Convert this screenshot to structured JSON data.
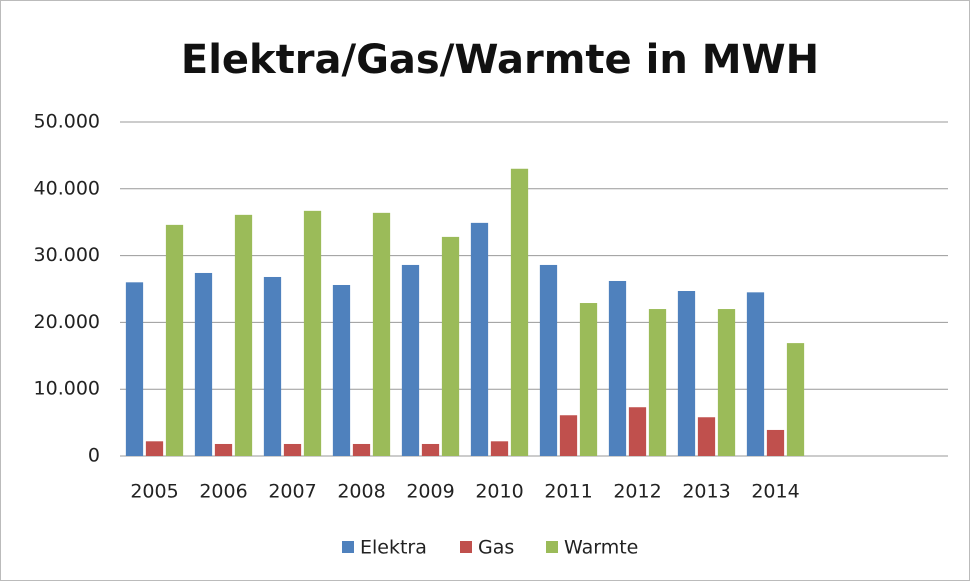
{
  "chart_data": {
    "type": "bar",
    "title": "Elektra/Gas/Warmte in MWH",
    "categories": [
      "2005",
      "2006",
      "2007",
      "2008",
      "2009",
      "2010",
      "2011",
      "2012",
      "2013",
      "2014",
      null,
      null
    ],
    "series": [
      {
        "name": "Elektra",
        "color": "#4f81bd",
        "values": [
          26000,
          27400,
          26800,
          25600,
          28600,
          34900,
          28600,
          26200,
          24700,
          24500,
          null,
          null
        ]
      },
      {
        "name": "Gas",
        "color": "#c0504d",
        "values": [
          2200,
          1800,
          1800,
          1800,
          1800,
          2200,
          6100,
          7300,
          5800,
          3900,
          null,
          null
        ]
      },
      {
        "name": "Warmte",
        "color": "#9bbb59",
        "values": [
          34600,
          36100,
          36700,
          36400,
          32800,
          43000,
          22900,
          22000,
          22000,
          16900,
          null,
          null
        ]
      }
    ],
    "ylim": [
      0,
      50000
    ],
    "yticks": [
      0,
      {
        "value": 10000,
        "label": "10.000"
      },
      {
        "value": 20000,
        "label": "20.000"
      },
      {
        "value": 30000,
        "label": "30.000"
      },
      {
        "value": 40000,
        "label": "40.000"
      },
      {
        "value": 50000,
        "label": "50.000"
      }
    ],
    "grid": true,
    "legend": "bottom"
  }
}
